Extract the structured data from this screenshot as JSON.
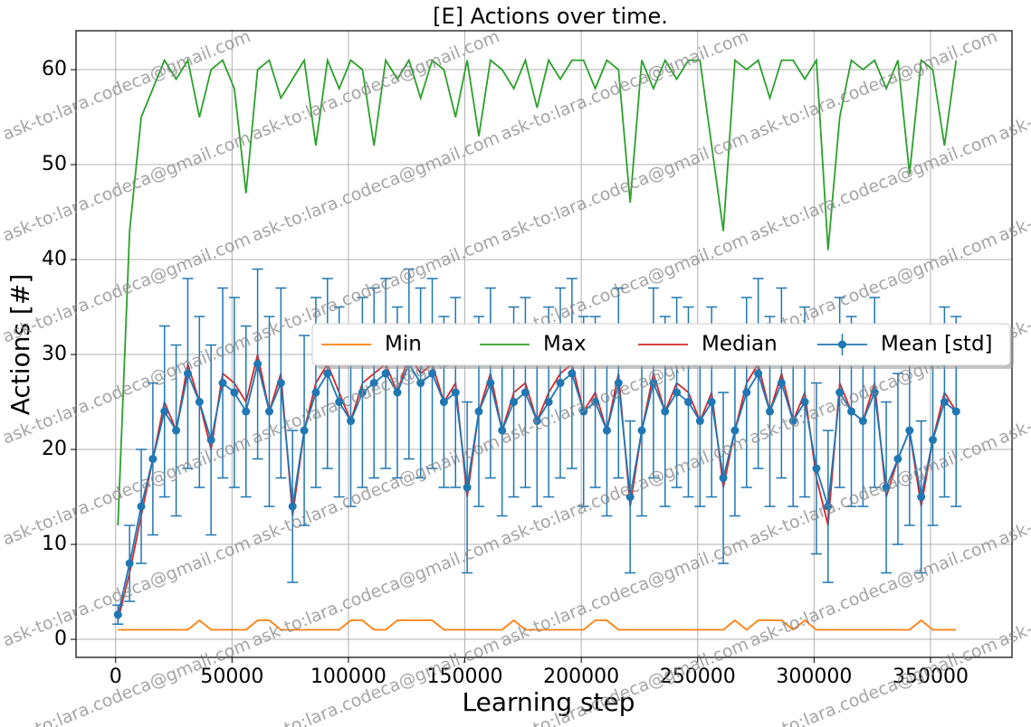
{
  "chart_data": {
    "type": "line",
    "title": "[E] Actions over time.",
    "x_label": "Learning step",
    "y_label": "Actions [#]",
    "watermark": "ask-to:lara.codeca@gmail.com",
    "x": [
      1000,
      6000,
      11000,
      16000,
      21000,
      26000,
      31000,
      36000,
      41000,
      46000,
      51000,
      56000,
      61000,
      66000,
      71000,
      76000,
      81000,
      86000,
      91000,
      96000,
      101000,
      106000,
      111000,
      116000,
      121000,
      126000,
      131000,
      136000,
      141000,
      146000,
      151000,
      156000,
      161000,
      166000,
      171000,
      176000,
      181000,
      186000,
      191000,
      196000,
      201000,
      206000,
      211000,
      216000,
      221000,
      226000,
      231000,
      236000,
      241000,
      246000,
      251000,
      256000,
      261000,
      266000,
      271000,
      276000,
      281000,
      286000,
      291000,
      296000,
      301000,
      306000,
      311000,
      316000,
      321000,
      326000,
      331000,
      336000,
      341000,
      346000,
      351000,
      356000,
      361000
    ],
    "series": [
      {
        "name": "Min",
        "color": "#ff7f0e",
        "values": [
          1,
          1,
          1,
          1,
          1,
          1,
          1,
          2,
          1,
          1,
          1,
          1,
          2,
          2,
          1,
          1,
          1,
          1,
          1,
          1,
          2,
          2,
          1,
          1,
          2,
          2,
          2,
          2,
          1,
          1,
          1,
          1,
          1,
          1,
          2,
          1,
          1,
          1,
          1,
          1,
          1,
          2,
          2,
          1,
          1,
          1,
          1,
          1,
          1,
          1,
          1,
          1,
          1,
          2,
          1,
          2,
          2,
          2,
          1,
          2,
          1,
          1,
          1,
          1,
          1,
          1,
          1,
          1,
          1,
          2,
          1,
          1,
          1
        ]
      },
      {
        "name": "Max",
        "color": "#2ca02c",
        "values": [
          12,
          43,
          55,
          58,
          61,
          59,
          61,
          55,
          60,
          61,
          58,
          47,
          60,
          61,
          57,
          59,
          61,
          52,
          61,
          58,
          61,
          60,
          52,
          61,
          59,
          61,
          57,
          61,
          60,
          55,
          61,
          53,
          61,
          60,
          58,
          61,
          56,
          61,
          59,
          61,
          61,
          58,
          61,
          60,
          46,
          61,
          58,
          61,
          59,
          61,
          61,
          52,
          43,
          61,
          60,
          61,
          57,
          61,
          61,
          59,
          61,
          41,
          55,
          61,
          60,
          61,
          58,
          61,
          49,
          61,
          60,
          52,
          61
        ]
      },
      {
        "name": "Median",
        "color": "#d62728",
        "values": [
          2,
          7,
          13,
          19,
          25,
          22,
          29,
          25,
          20,
          28,
          27,
          25,
          30,
          24,
          28,
          13,
          22,
          27,
          29,
          26,
          23,
          27,
          28,
          29,
          26,
          30,
          28,
          29,
          25,
          27,
          15,
          24,
          28,
          22,
          26,
          27,
          23,
          26,
          28,
          29,
          24,
          26,
          22,
          28,
          14,
          22,
          28,
          24,
          27,
          26,
          23,
          26,
          16,
          22,
          27,
          29,
          24,
          28,
          23,
          26,
          17,
          12,
          27,
          24,
          23,
          27,
          15,
          19,
          22,
          14,
          21,
          26,
          24
        ]
      },
      {
        "name": "Mean [std]",
        "color": "#1f77b4",
        "values": [
          2.6,
          8,
          14,
          19,
          24,
          22,
          28,
          25,
          21,
          27,
          26,
          24,
          29,
          24,
          27,
          14,
          22,
          26,
          28,
          25,
          23,
          26,
          27,
          28,
          26,
          29,
          27,
          28,
          25,
          26,
          16,
          24,
          27,
          22,
          25,
          26,
          23,
          25,
          27,
          28,
          24,
          25,
          22,
          27,
          15,
          22,
          27,
          24,
          26,
          25,
          23,
          25,
          17,
          22,
          26,
          28,
          24,
          27,
          23,
          25,
          18,
          14,
          26,
          24,
          23,
          26,
          16,
          19,
          22,
          15,
          21,
          25,
          24
        ],
        "errors": [
          1,
          4,
          6,
          8,
          9,
          9,
          10,
          9,
          10,
          10,
          10,
          9,
          10,
          10,
          10,
          8,
          10,
          10,
          10,
          10,
          9,
          10,
          10,
          10,
          9,
          10,
          10,
          10,
          9,
          10,
          9,
          10,
          10,
          9,
          10,
          10,
          9,
          10,
          10,
          10,
          10,
          9,
          9,
          10,
          8,
          9,
          10,
          10,
          10,
          10,
          9,
          10,
          9,
          9,
          10,
          10,
          10,
          10,
          9,
          10,
          9,
          8,
          10,
          10,
          9,
          10,
          9,
          9,
          10,
          8,
          9,
          10,
          10
        ]
      }
    ],
    "xlim": [
      -17000,
      385000
    ],
    "ylim": [
      -1.9,
      64.1
    ],
    "xticks": [
      0,
      50000,
      100000,
      150000,
      200000,
      250000,
      300000,
      350000
    ],
    "yticks": [
      0,
      10,
      20,
      30,
      40,
      50,
      60
    ],
    "grid": true,
    "legend": "center right"
  }
}
